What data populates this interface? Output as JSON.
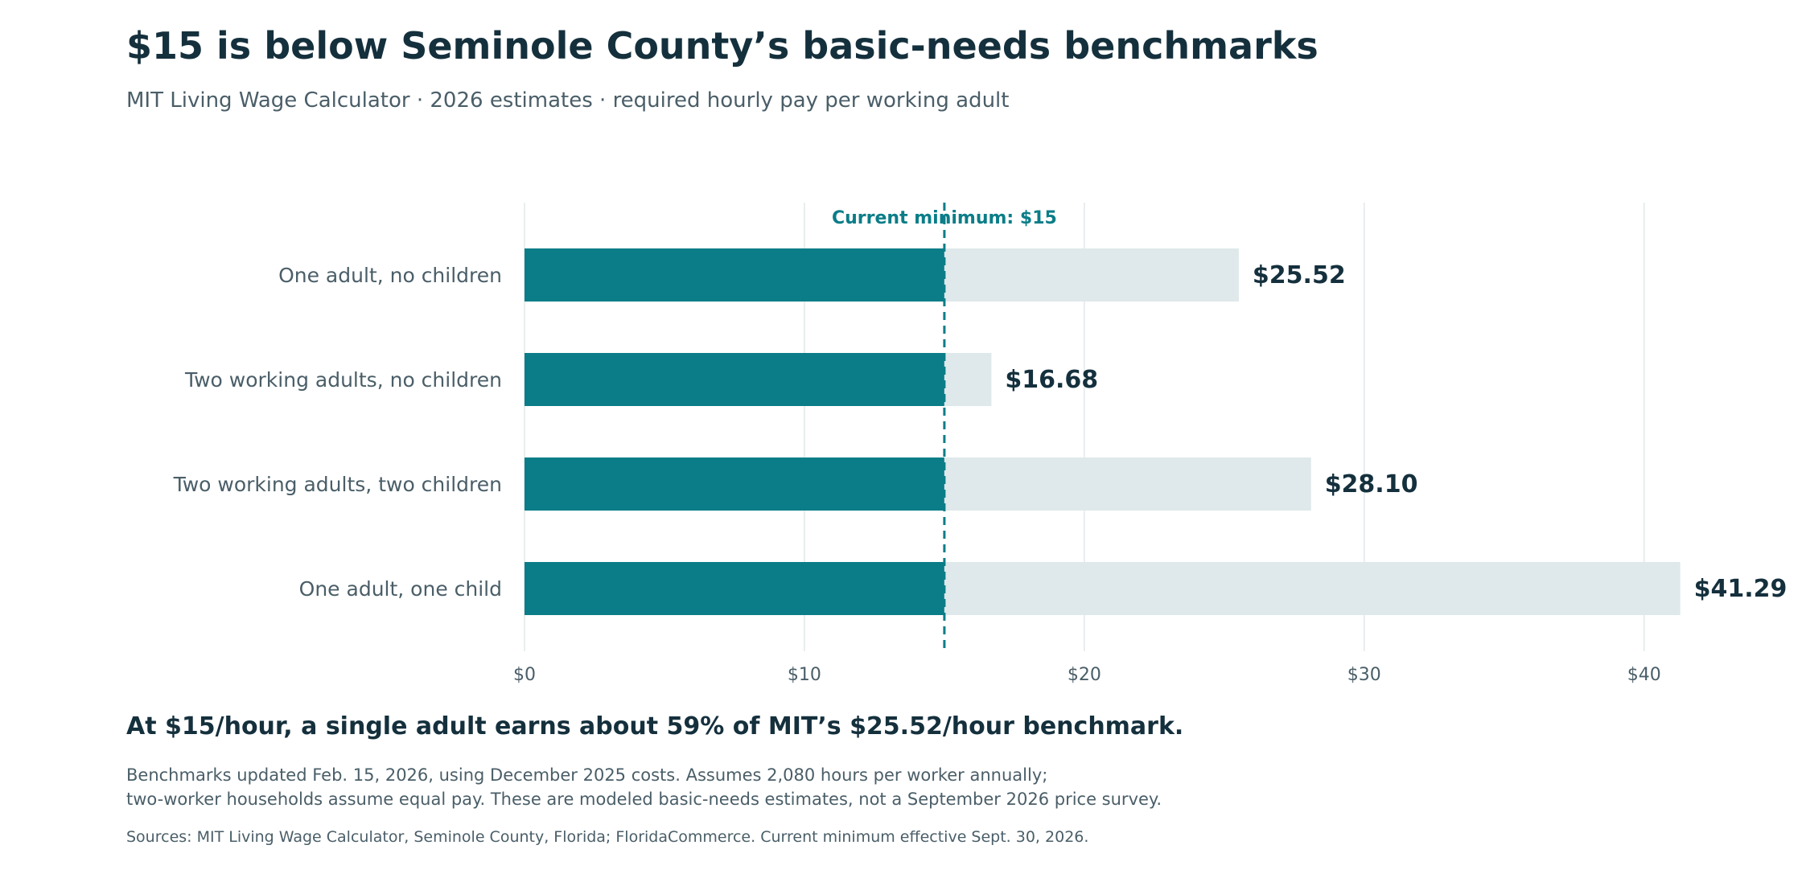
{
  "header": {
    "title": "$15 is below Seminole County’s basic-needs benchmarks",
    "subtitle": "MIT Living Wage Calculator · 2026 estimates · required hourly pay per working adult"
  },
  "chart_data": {
    "type": "bar",
    "orientation": "horizontal",
    "categories": [
      "One adult, no children",
      "Two working adults, no children",
      "Two working adults, two children",
      "One adult, one child"
    ],
    "values": [
      25.52,
      16.68,
      28.1,
      41.29
    ],
    "value_labels": [
      "$25.52",
      "$16.68",
      "$28.10",
      "$41.29"
    ],
    "reference_line": {
      "value": 15,
      "label": "Current minimum: $15"
    },
    "xlim": [
      0,
      46
    ],
    "x_ticks": [
      0,
      10,
      20,
      30,
      40
    ],
    "x_tick_labels": [
      "$0",
      "$10",
      "$20",
      "$30",
      "$40"
    ],
    "grid": "vertical",
    "colors": {
      "below_minimum": "#0a7d88",
      "above_minimum": "#dfe8ea",
      "reference_line": "#0a7d88",
      "value_label": "#15303d",
      "category_label": "#4a5e68",
      "tick_label": "#4a5e68",
      "grid": "#e2e8ea"
    }
  },
  "takeaway": "At $15/hour, a single adult earns about 59% of MIT’s $25.52/hour benchmark.",
  "notes": {
    "line1": "Benchmarks updated Feb. 15, 2026, using December 2025 costs. Assumes 2,080 hours per worker annually;",
    "line2": "two-worker households assume equal pay. These are modeled basic-needs estimates, not a September 2026 price survey."
  },
  "source": "Sources: MIT Living Wage Calculator, Seminole County, Florida; FloridaCommerce. Current minimum effective Sept. 30, 2026."
}
